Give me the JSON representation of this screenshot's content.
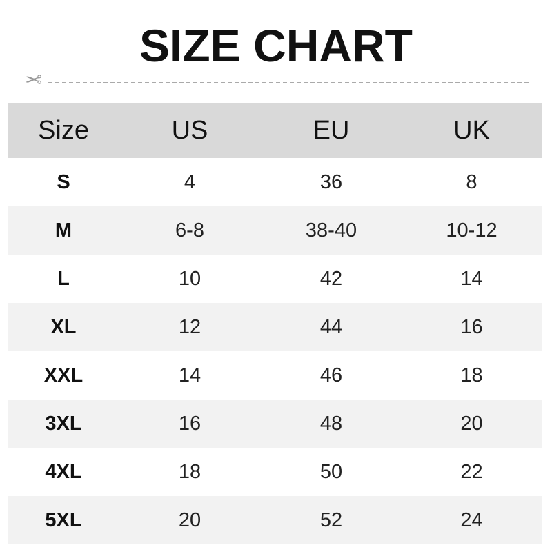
{
  "title": "SIZE CHART",
  "icons": {
    "cut_line": "scissors-icon"
  },
  "colors": {
    "header_bg": "#d9d9d9",
    "alt_row_bg": "#f2f2f2"
  },
  "table": {
    "headers": [
      "Size",
      "US",
      "EU",
      "UK"
    ],
    "rows": [
      [
        "S",
        "4",
        "36",
        "8"
      ],
      [
        "M",
        "6-8",
        "38-40",
        "10-12"
      ],
      [
        "L",
        "10",
        "42",
        "14"
      ],
      [
        "XL",
        "12",
        "44",
        "16"
      ],
      [
        "XXL",
        "14",
        "46",
        "18"
      ],
      [
        "3XL",
        "16",
        "48",
        "20"
      ],
      [
        "4XL",
        "18",
        "50",
        "22"
      ],
      [
        "5XL",
        "20",
        "52",
        "24"
      ]
    ]
  }
}
